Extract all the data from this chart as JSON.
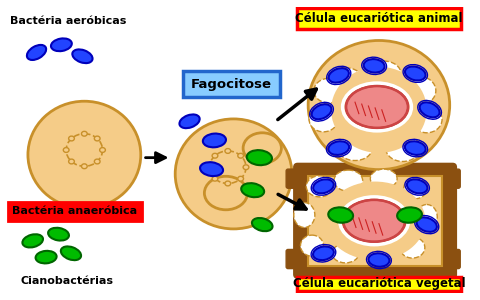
{
  "bg_color": "#ffffff",
  "cell_fill": "#f5cc88",
  "cell_edge": "#c8902a",
  "cell_lw": 2.0,
  "blue_fill": "#2244ff",
  "blue_edge": "#0000bb",
  "green_fill": "#00bb00",
  "green_edge": "#006600",
  "pink_fill": "#ee8888",
  "pink_edge": "#cc4444",
  "brown_wall": "#8B5010",
  "label_aerobicas": "Bactéria aeróbicas",
  "label_anaerobica": "Bactéria anaeróbica",
  "label_ciano": "Cianobactérias",
  "label_fagocitose": "Fagocitose",
  "label_animal": "Célula eucariótica animal",
  "label_vegetal": "Célula eucariótica vegetal",
  "red_box_color": "#ff0000",
  "fagocitose_box_fill": "#88ccff",
  "fagocitose_box_edge": "#2266cc",
  "yellow_box_fill": "#ffff00",
  "yellow_box_edge": "#ff0000",
  "nucleus_lines_color": "#cc2222"
}
